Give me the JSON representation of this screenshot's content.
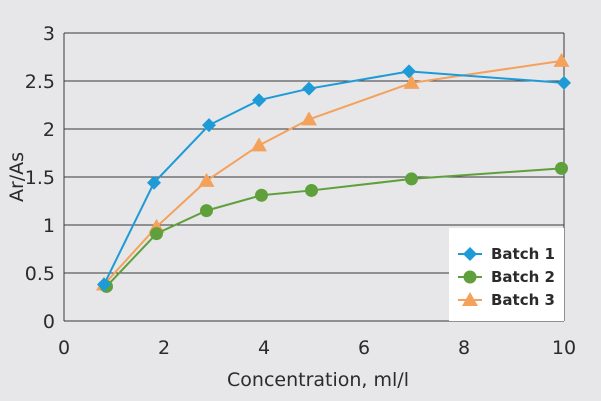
{
  "chart_data": {
    "type": "line",
    "xlabel": "Concentration, ml/l",
    "ylabel": "Ar/As",
    "xlim": [
      0,
      10
    ],
    "ylim": [
      0,
      3
    ],
    "xticks": [
      0,
      2,
      4,
      6,
      8,
      10
    ],
    "yticks": [
      0,
      0.5,
      1,
      1.5,
      2,
      2.5,
      3
    ],
    "grid": "horizontal",
    "legend_position": "bottom-right",
    "series": [
      {
        "name": "Batch 1",
        "color": "#1e9bd7",
        "marker": "diamond",
        "x": [
          0.8,
          1.8,
          2.9,
          3.9,
          4.9,
          6.9,
          10
        ],
        "y": [
          0.38,
          1.44,
          2.04,
          2.3,
          2.42,
          2.6,
          2.48
        ]
      },
      {
        "name": "Batch 2",
        "color": "#5fa03c",
        "marker": "circle",
        "x": [
          0.85,
          1.85,
          2.85,
          3.95,
          4.95,
          6.95,
          9.95
        ],
        "y": [
          0.36,
          0.91,
          1.15,
          1.31,
          1.36,
          1.48,
          1.59
        ]
      },
      {
        "name": "Batch 3",
        "color": "#f4a15c",
        "marker": "triangle",
        "x": [
          0.8,
          1.85,
          2.85,
          3.9,
          4.9,
          6.95,
          9.95
        ],
        "y": [
          0.38,
          0.98,
          1.46,
          1.83,
          2.1,
          2.48,
          2.71
        ]
      }
    ]
  }
}
